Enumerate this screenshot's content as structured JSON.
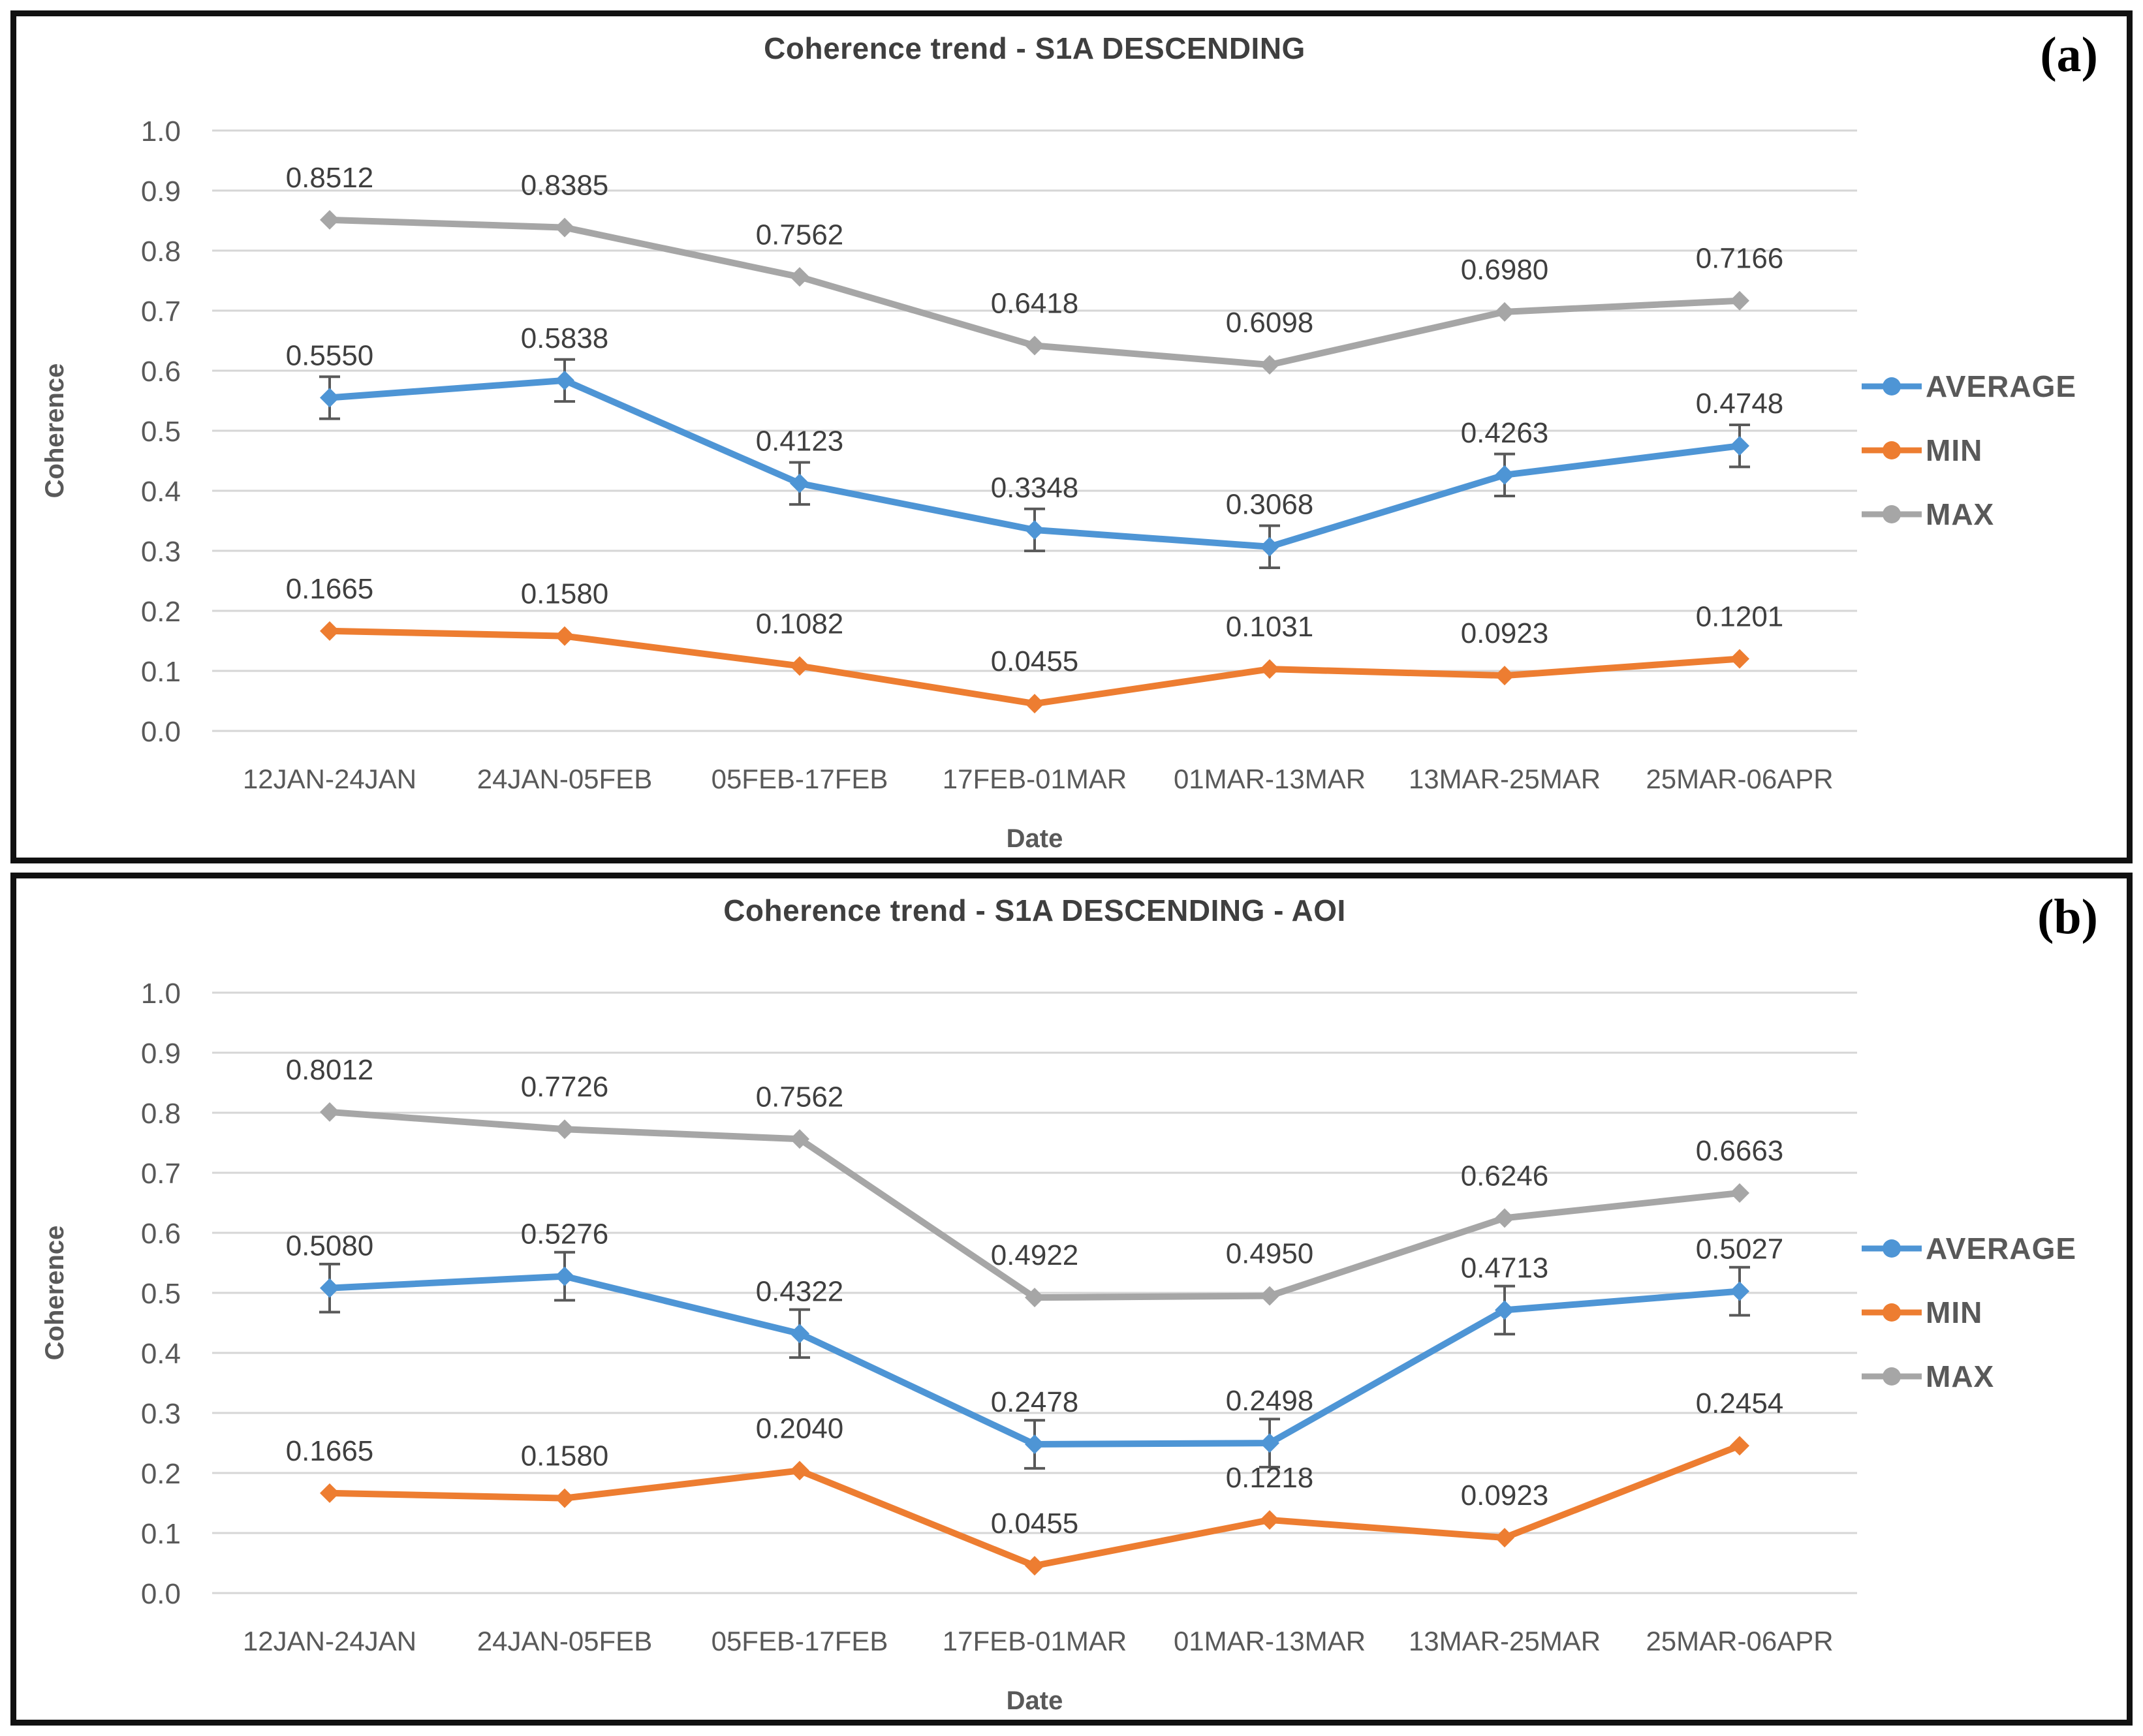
{
  "page": {
    "background": "#ffffff",
    "panel_border_color": "#111111",
    "gridline_color": "#d6d6d6",
    "error_bar_color": "#595959"
  },
  "chart_data": [
    {
      "type": "line",
      "title": "Coherence trend - S1A DESCENDING",
      "corner_label": "(a)",
      "xlabel": "Date",
      "ylabel": "Coherence",
      "ylim": [
        0.0,
        1.0
      ],
      "yticks": [
        "1.0",
        "0.9",
        "0.8",
        "0.7",
        "0.6",
        "0.5",
        "0.4",
        "0.3",
        "0.2",
        "0.1",
        "0.0"
      ],
      "grid": true,
      "legend_position": "right",
      "categories": [
        "12JAN-24JAN",
        "24JAN-05FEB",
        "05FEB-17FEB",
        "17FEB-01MAR",
        "01MAR-13MAR",
        "13MAR-25MAR",
        "25MAR-06APR"
      ],
      "series": [
        {
          "name": "AVERAGE",
          "color": "#4e95d5",
          "error_bar": 0.035,
          "values": [
            0.555,
            0.5838,
            0.4123,
            0.3348,
            0.3068,
            0.4263,
            0.4748
          ]
        },
        {
          "name": "MIN",
          "color": "#ed7d31",
          "values": [
            0.1665,
            0.158,
            0.1082,
            0.0455,
            0.1031,
            0.0923,
            0.1201
          ]
        },
        {
          "name": "MAX",
          "color": "#a6a6a6",
          "values": [
            0.8512,
            0.8385,
            0.7562,
            0.6418,
            0.6098,
            0.698,
            0.7166
          ]
        }
      ]
    },
    {
      "type": "line",
      "title": "Coherence trend - S1A DESCENDING - AOI",
      "corner_label": "(b)",
      "xlabel": "Date",
      "ylabel": "Coherence",
      "ylim": [
        0.0,
        1.0
      ],
      "yticks": [
        "1.0",
        "0.9",
        "0.8",
        "0.7",
        "0.6",
        "0.5",
        "0.4",
        "0.3",
        "0.2",
        "0.1",
        "0.0"
      ],
      "grid": true,
      "legend_position": "right",
      "categories": [
        "12JAN-24JAN",
        "24JAN-05FEB",
        "05FEB-17FEB",
        "17FEB-01MAR",
        "01MAR-13MAR",
        "13MAR-25MAR",
        "25MAR-06APR"
      ],
      "series": [
        {
          "name": "AVERAGE",
          "color": "#4e95d5",
          "error_bar": 0.04,
          "values": [
            0.508,
            0.5276,
            0.4322,
            0.2478,
            0.2498,
            0.4713,
            0.5027
          ]
        },
        {
          "name": "MIN",
          "color": "#ed7d31",
          "values": [
            0.1665,
            0.158,
            0.204,
            0.0455,
            0.1218,
            0.0923,
            0.2454
          ]
        },
        {
          "name": "MAX",
          "color": "#a6a6a6",
          "values": [
            0.8012,
            0.7726,
            0.7562,
            0.4922,
            0.495,
            0.6246,
            0.6663
          ]
        }
      ]
    }
  ]
}
